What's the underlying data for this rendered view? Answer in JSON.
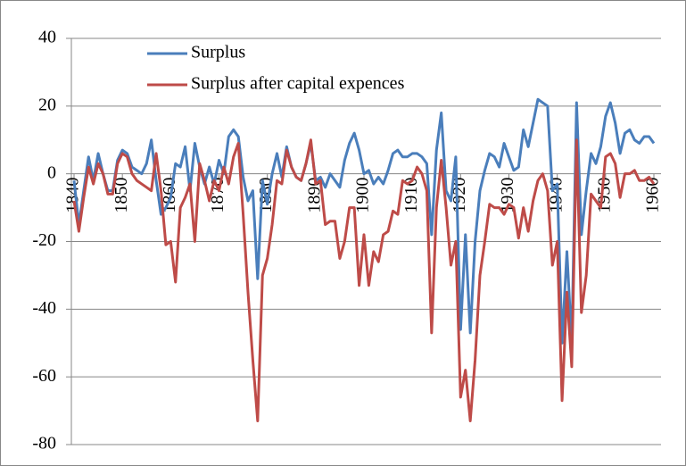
{
  "chart_data": {
    "type": "line",
    "x": [
      1840,
      1841,
      1842,
      1843,
      1844,
      1845,
      1846,
      1847,
      1848,
      1849,
      1850,
      1851,
      1852,
      1853,
      1854,
      1855,
      1856,
      1857,
      1858,
      1859,
      1860,
      1861,
      1862,
      1863,
      1864,
      1865,
      1866,
      1867,
      1868,
      1869,
      1870,
      1871,
      1872,
      1873,
      1874,
      1875,
      1876,
      1877,
      1878,
      1879,
      1880,
      1881,
      1882,
      1883,
      1884,
      1885,
      1886,
      1887,
      1888,
      1889,
      1890,
      1891,
      1892,
      1893,
      1894,
      1895,
      1896,
      1897,
      1898,
      1899,
      1900,
      1901,
      1902,
      1903,
      1904,
      1905,
      1906,
      1907,
      1908,
      1909,
      1910,
      1911,
      1912,
      1913,
      1914,
      1915,
      1916,
      1917,
      1918,
      1919,
      1920,
      1921,
      1922,
      1923,
      1924,
      1925,
      1926,
      1927,
      1928,
      1929,
      1930,
      1931,
      1932,
      1933,
      1934,
      1935,
      1936,
      1937,
      1938,
      1939,
      1940,
      1941,
      1942,
      1943,
      1944,
      1945,
      1946,
      1947,
      1948,
      1949,
      1950,
      1951,
      1952,
      1953,
      1954,
      1955,
      1956,
      1957,
      1958,
      1959,
      1960
    ],
    "series": [
      {
        "name": "Surplus",
        "color": "#4a7ebb",
        "values": [
          -2,
          -15,
          -5,
          5,
          -2,
          6,
          0,
          -5,
          -5,
          4,
          7,
          6,
          2,
          1,
          0,
          3,
          10,
          -2,
          -12,
          -10,
          -7,
          3,
          2,
          8,
          -5,
          9,
          2,
          -3,
          2,
          -3,
          4,
          0,
          11,
          13,
          11,
          -1,
          -8,
          -5,
          -31,
          -2,
          -9,
          0,
          6,
          -1,
          8,
          2,
          -1,
          -2,
          3,
          9,
          -2,
          -1,
          -4,
          0,
          -2,
          -4,
          4,
          9,
          12,
          7,
          0,
          1,
          -3,
          -1,
          -3,
          1,
          6,
          7,
          5,
          5,
          6,
          6,
          5,
          3,
          -18,
          7,
          18,
          -5,
          -8,
          5,
          -46,
          -18,
          -47,
          -20,
          -5,
          1,
          6,
          5,
          2,
          9,
          5,
          1,
          2,
          13,
          8,
          15,
          22,
          21,
          20,
          -5,
          -3,
          -50,
          -23,
          -50,
          21,
          -18,
          -5,
          6,
          3,
          8,
          17,
          21,
          15,
          6,
          12,
          13,
          10,
          9,
          11,
          11,
          9
        ]
      },
      {
        "name": "Surplus after capital expences",
        "color": "#be4b48",
        "values": [
          -8,
          -17,
          -7,
          2,
          -3,
          3,
          0,
          -6,
          -6,
          3,
          6,
          5,
          0,
          -2,
          -3,
          -4,
          -5,
          6,
          -5,
          -21,
          -20,
          -32,
          -10,
          -7,
          -3,
          -20,
          3,
          -2,
          -8,
          -2,
          -5,
          2,
          -3,
          5,
          9,
          -12,
          -35,
          -55,
          -73,
          -30,
          -25,
          -15,
          -2,
          -3,
          7,
          2,
          -1,
          -2,
          3,
          10,
          -3,
          -2,
          -15,
          -14,
          -14,
          -25,
          -20,
          -10,
          -10,
          -33,
          -18,
          -33,
          -23,
          -26,
          -18,
          -17,
          -11,
          -12,
          -2,
          -3,
          -2,
          2,
          0,
          -5,
          -47,
          -10,
          4,
          -10,
          -27,
          -20,
          -66,
          -58,
          -73,
          -55,
          -30,
          -20,
          -9,
          -10,
          -10,
          -12,
          -9,
          -10,
          -19,
          -10,
          -17,
          -8,
          -2,
          0,
          -5,
          -27,
          -20,
          -67,
          -35,
          -57,
          10,
          -41,
          -30,
          -6,
          -8,
          -10,
          5,
          6,
          3,
          -7,
          0,
          0,
          1,
          -2,
          -2,
          -1,
          -3
        ]
      }
    ],
    "xlim": [
      1840,
      1960
    ],
    "xticks": [
      1840,
      1850,
      1860,
      1870,
      1880,
      1890,
      1900,
      1910,
      1920,
      1930,
      1940,
      1950,
      1960
    ],
    "ylim": [
      -80,
      40
    ],
    "yticks": [
      -80,
      -60,
      -40,
      -20,
      0,
      20,
      40
    ],
    "grid": true,
    "legend": "top-left"
  }
}
